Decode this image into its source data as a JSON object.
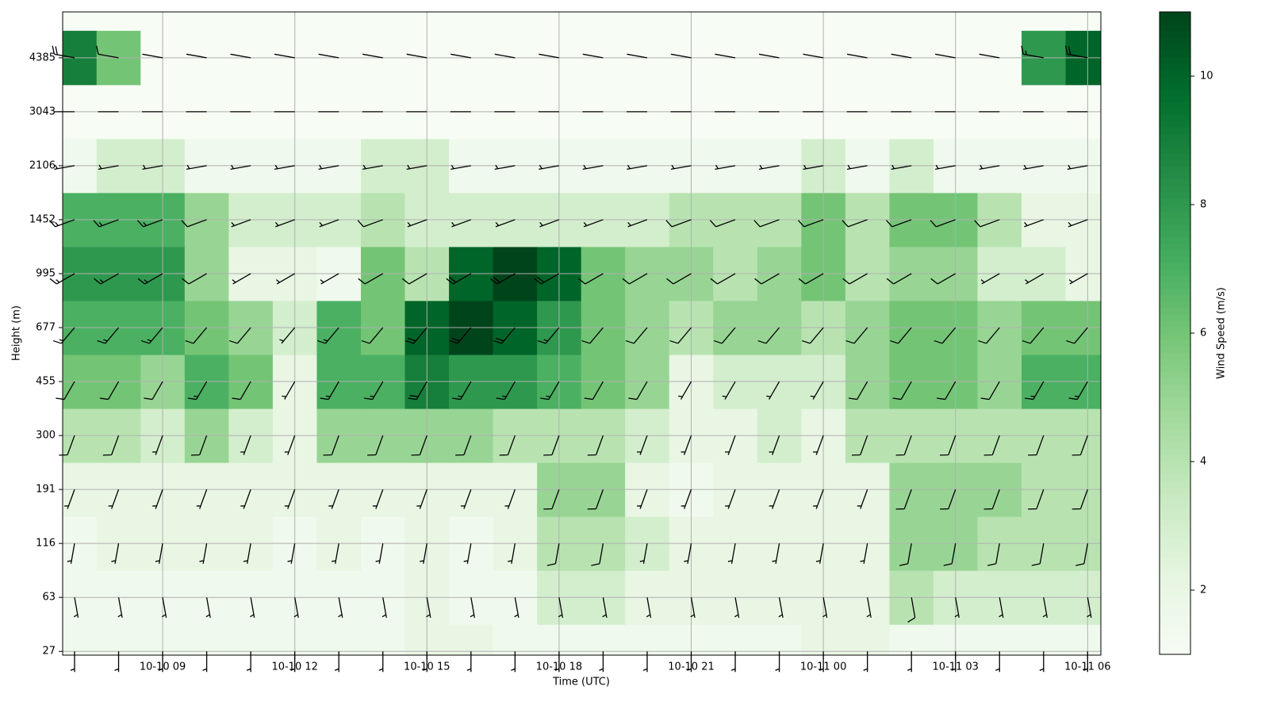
{
  "chart_data": {
    "type": "heatmap",
    "xlabel": "Time (UTC)",
    "ylabel": "Height (m)",
    "x": [
      7,
      8,
      9,
      10,
      11,
      12,
      13,
      14,
      15,
      16,
      17,
      18,
      19,
      20,
      21,
      22,
      23,
      24,
      25,
      26,
      27,
      28,
      29,
      30
    ],
    "xlim": [
      6.73,
      30.3
    ],
    "xticks": [
      {
        "value": 9,
        "label": "10-10 09"
      },
      {
        "value": 12,
        "label": "10-10 12"
      },
      {
        "value": 15,
        "label": "10-10 15"
      },
      {
        "value": 18,
        "label": "10-10 18"
      },
      {
        "value": 21,
        "label": "10-10 21"
      },
      {
        "value": 24,
        "label": "10-11 00"
      },
      {
        "value": 27,
        "label": "10-11 03"
      },
      {
        "value": 30,
        "label": "10-11 06"
      }
    ],
    "ylim": [
      -0.07,
      11.85
    ],
    "yticks": [
      {
        "value": 0,
        "label": "27"
      },
      {
        "value": 1,
        "label": "63"
      },
      {
        "value": 2,
        "label": "116"
      },
      {
        "value": 3,
        "label": "191"
      },
      {
        "value": 4,
        "label": "300"
      },
      {
        "value": 5,
        "label": "455"
      },
      {
        "value": 6,
        "label": "677"
      },
      {
        "value": 7,
        "label": "995"
      },
      {
        "value": 8,
        "label": "1452"
      },
      {
        "value": 9,
        "label": "2106"
      },
      {
        "value": 10,
        "label": "3043"
      },
      {
        "value": 11,
        "label": "4385"
      }
    ],
    "grid": true,
    "values": [
      [
        1.5,
        1.5,
        1.5,
        1.5,
        1.5,
        1.5,
        1.5,
        1.5,
        2,
        2,
        1.5,
        1.5,
        1.5,
        1.5,
        1.5,
        1.5,
        1.5,
        2,
        2,
        1.5,
        1.5,
        1.5,
        1.5,
        1.5
      ],
      [
        1.5,
        1.5,
        1.5,
        1.5,
        1.5,
        1.5,
        1.5,
        1.5,
        2,
        1.5,
        1.5,
        3,
        3,
        2,
        2,
        2,
        2,
        2,
        2,
        4,
        3,
        3,
        3,
        3
      ],
      [
        1.5,
        2,
        2,
        2,
        2,
        1.5,
        2,
        1.5,
        2,
        1.5,
        2,
        4,
        4,
        3,
        2,
        2,
        2,
        2,
        2,
        5,
        5,
        4,
        4,
        4
      ],
      [
        2,
        2,
        2,
        2,
        2,
        2,
        2,
        2,
        2,
        2,
        2,
        5,
        5,
        2,
        1.5,
        2,
        2,
        2,
        2,
        5,
        5,
        5,
        4,
        4
      ],
      [
        4,
        4,
        3,
        5,
        3,
        2,
        5,
        5,
        5,
        5,
        4,
        4,
        4,
        3,
        2,
        2,
        3,
        2,
        4,
        4,
        4,
        4,
        4,
        4
      ],
      [
        6,
        6,
        5,
        7,
        6,
        2,
        7,
        7,
        9,
        8,
        8,
        7,
        6,
        5,
        2,
        3,
        3,
        3,
        5,
        6,
        6,
        5,
        7,
        7
      ],
      [
        7,
        7,
        7,
        6,
        5,
        3,
        7,
        6,
        10,
        11,
        10,
        8,
        6,
        5,
        4,
        5,
        5,
        4,
        5,
        6,
        6,
        5,
        6,
        6
      ],
      [
        8,
        8,
        8,
        5,
        2,
        2,
        1.5,
        6,
        4,
        10,
        11,
        10,
        6,
        5,
        5,
        4,
        5,
        6,
        4,
        5,
        5,
        3,
        3,
        2
      ],
      [
        7,
        7,
        7,
        5,
        3,
        3,
        3,
        4,
        3,
        3,
        3,
        3,
        3,
        3,
        4,
        4,
        4,
        6,
        4,
        6,
        6,
        4,
        2,
        2
      ],
      [
        1.5,
        3,
        3,
        1.5,
        1.5,
        1.5,
        1.5,
        3,
        3,
        1.5,
        1.5,
        1.5,
        1.5,
        1.5,
        1.5,
        1.5,
        1.5,
        3,
        1.5,
        3,
        1.5,
        1.5,
        1.5,
        1.5
      ],
      [
        1,
        1,
        1,
        1,
        1,
        1,
        1,
        1,
        1,
        1,
        1,
        1,
        1,
        1,
        1,
        1,
        1,
        1,
        1,
        1,
        1,
        1,
        1,
        1
      ],
      [
        9,
        6,
        1,
        1,
        1,
        1,
        1,
        1,
        1,
        1,
        1,
        1,
        1,
        1,
        1,
        1,
        1,
        1,
        1,
        1,
        1,
        1,
        8,
        10
      ]
    ],
    "directions": [
      180,
      170,
      190,
      200,
      200,
      210,
      220,
      240,
      250,
      260,
      270,
      280
    ],
    "colorbar": {
      "label": "Wind Speed (m/s)",
      "lim": [
        1,
        11
      ],
      "ticks": [
        2,
        4,
        6,
        8,
        10
      ]
    }
  }
}
